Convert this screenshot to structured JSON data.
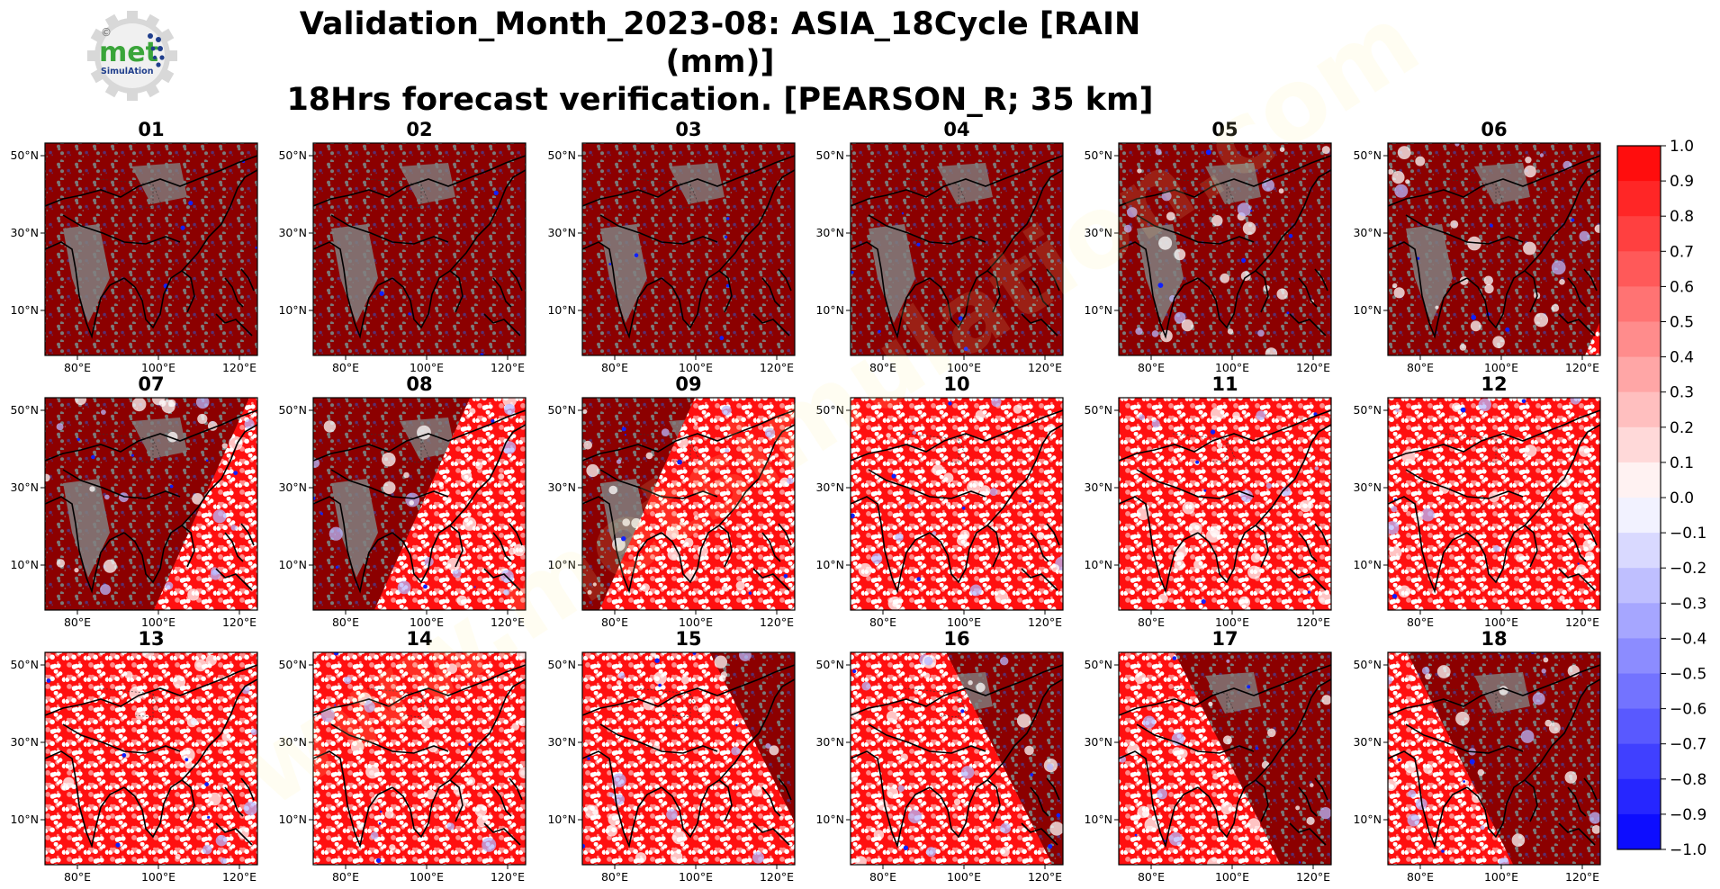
{
  "title": {
    "line1": "Validation_Month_2023-08: ASIA_18Cycle [RAIN (mm)]",
    "line2": "18Hrs forecast verification.  [PEARSON_R; 35 km]"
  },
  "logo": {
    "word": "met",
    "sub": "SimulAtion",
    "mark": "©"
  },
  "watermark": "www.metsimulation.com",
  "chart_data": {
    "type": "heatmap",
    "panel_titles": [
      "01",
      "02",
      "03",
      "04",
      "05",
      "06",
      "07",
      "08",
      "09",
      "10",
      "11",
      "12",
      "13",
      "14",
      "15",
      "16",
      "17",
      "18"
    ],
    "lat_ticks": [
      "50°N",
      "30°N",
      "10°N"
    ],
    "lon_ticks": [
      "80°E",
      "100°E",
      "120°E"
    ],
    "colorbar": {
      "range": [
        -1.0,
        1.0
      ],
      "ticks": [
        "1.0",
        "0.9",
        "0.8",
        "0.7",
        "0.6",
        "0.5",
        "0.4",
        "0.3",
        "0.2",
        "0.1",
        "0.0",
        "−0.1",
        "−0.2",
        "−0.3",
        "−0.4",
        "−0.5",
        "−0.6",
        "−0.7",
        "−0.8",
        "−0.9",
        "−1.0"
      ],
      "high_color": "#ff0000",
      "low_color": "#0000ff",
      "mid_color": "#ffffff"
    },
    "colors": {
      "land_unverified": "#8c0000",
      "no_data": "#808080"
    }
  }
}
